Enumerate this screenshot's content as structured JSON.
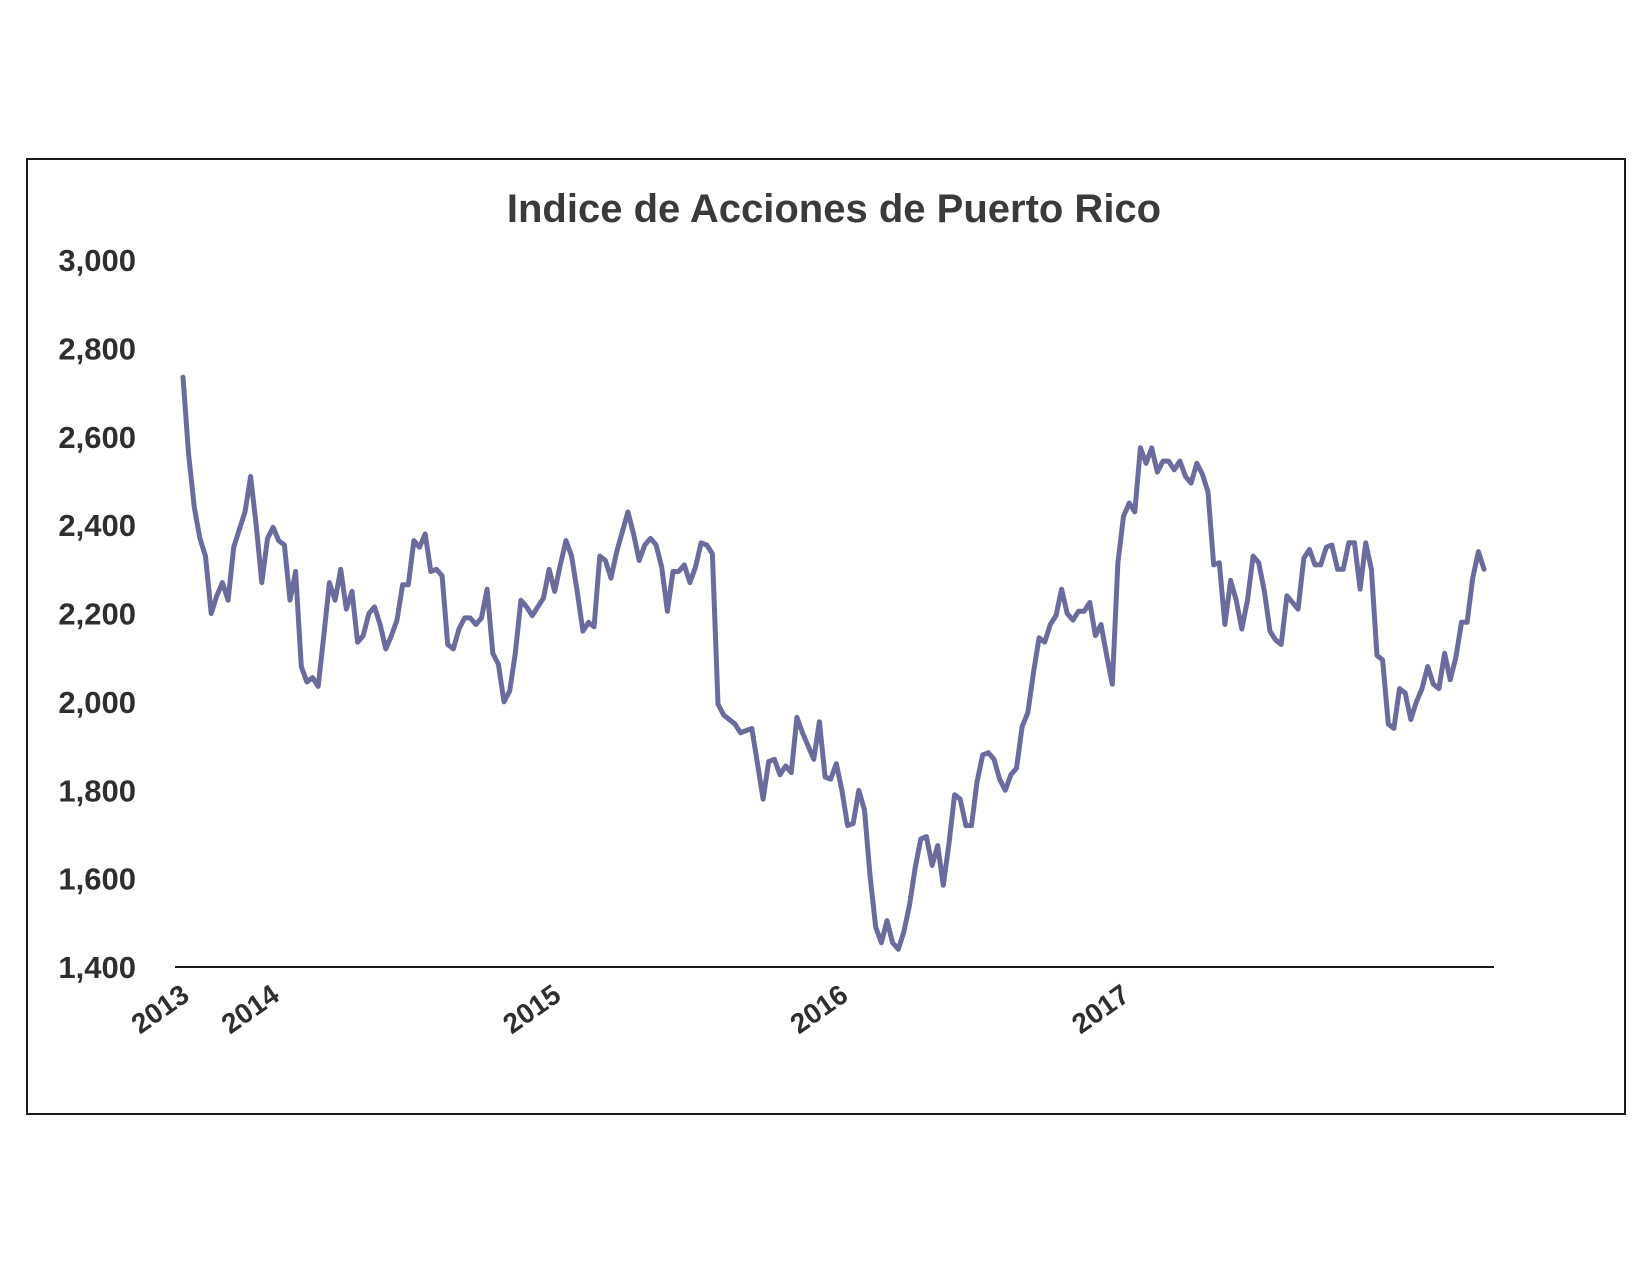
{
  "chart_data": {
    "type": "line",
    "title": "Indice de Acciones de Puerto Rico",
    "xlabel": "",
    "ylabel": "",
    "ylim": [
      1400,
      3000
    ],
    "yticks": [
      "1,400",
      "1,600",
      "1,800",
      "2,000",
      "2,200",
      "2,400",
      "2,600",
      "2,800",
      "3,000"
    ],
    "xticks": [
      {
        "label": "2013",
        "x": 0
      },
      {
        "label": "2014",
        "x": 16
      },
      {
        "label": "2015",
        "x": 66
      },
      {
        "label": "2016",
        "x": 117
      },
      {
        "label": "2017",
        "x": 167
      }
    ],
    "grid": false,
    "legend": "none",
    "line_color": "#6b6c9e",
    "series": [
      {
        "values": [
          2735,
          2560,
          2440,
          2370,
          2330,
          2200,
          2240,
          2270,
          2230,
          2350,
          2390,
          2430,
          2510,
          2400,
          2270,
          2370,
          2395,
          2365,
          2355,
          2230,
          2295,
          2080,
          2045,
          2055,
          2035,
          2150,
          2270,
          2230,
          2300,
          2210,
          2250,
          2135,
          2150,
          2200,
          2215,
          2175,
          2120,
          2150,
          2185,
          2265,
          2265,
          2365,
          2350,
          2380,
          2295,
          2300,
          2285,
          2130,
          2120,
          2165,
          2190,
          2190,
          2175,
          2190,
          2255,
          2110,
          2085,
          2000,
          2025,
          2110,
          2230,
          2215,
          2195,
          2215,
          2235,
          2300,
          2250,
          2310,
          2365,
          2330,
          2250,
          2160,
          2180,
          2170,
          2330,
          2320,
          2280,
          2340,
          2385,
          2430,
          2380,
          2320,
          2355,
          2370,
          2355,
          2305,
          2205,
          2295,
          2295,
          2310,
          2270,
          2305,
          2360,
          2355,
          2335,
          1995,
          1970,
          1960,
          1950,
          1930,
          1935,
          1940,
          1860,
          1780,
          1865,
          1870,
          1835,
          1855,
          1840,
          1965,
          1930,
          1900,
          1870,
          1955,
          1830,
          1825,
          1860,
          1800,
          1720,
          1725,
          1800,
          1755,
          1605,
          1490,
          1455,
          1505,
          1455,
          1440,
          1480,
          1540,
          1625,
          1690,
          1695,
          1630,
          1675,
          1585,
          1680,
          1790,
          1780,
          1720,
          1720,
          1820,
          1880,
          1885,
          1870,
          1825,
          1800,
          1835,
          1850,
          1945,
          1975,
          2065,
          2145,
          2135,
          2175,
          2195,
          2255,
          2200,
          2185,
          2205,
          2205,
          2225,
          2150,
          2175,
          2105,
          2040,
          2315,
          2420,
          2450,
          2430,
          2575,
          2540,
          2575,
          2520,
          2545,
          2545,
          2525,
          2545,
          2510,
          2495,
          2540,
          2515,
          2475,
          2310,
          2315,
          2175,
          2275,
          2230,
          2165,
          2230,
          2330,
          2315,
          2250,
          2160,
          2140,
          2130,
          2240,
          2225,
          2210,
          2325,
          2345,
          2310,
          2310,
          2350,
          2355,
          2300,
          2300,
          2360,
          2360,
          2255,
          2360,
          2300,
          2105,
          2095,
          1950,
          1940,
          2030,
          2020,
          1960,
          2000,
          2030,
          2080,
          2040,
          2030,
          2110,
          2050,
          2100,
          2180,
          2180,
          2280,
          2340,
          2300
        ]
      }
    ]
  }
}
